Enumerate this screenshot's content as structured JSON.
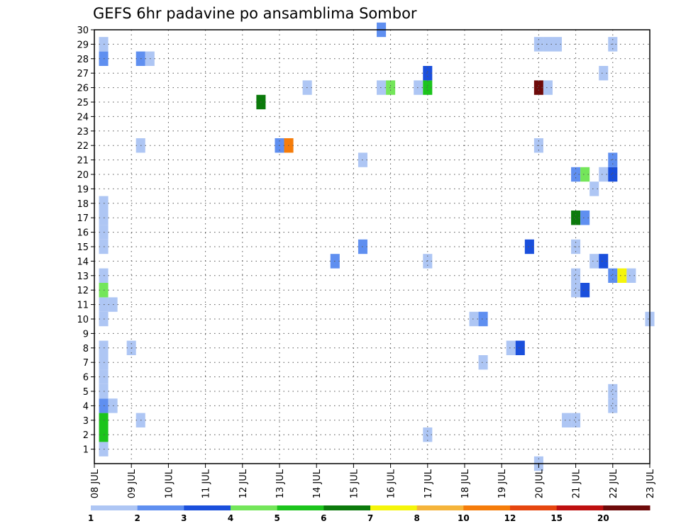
{
  "chart_data": {
    "type": "heatmap",
    "title": "GEFS 6hr padavine po ansamblima Sombor",
    "xlabel": "",
    "ylabel": "",
    "x_tick_labels": [
      "08 JUL",
      "09 JUL",
      "10 JUL",
      "11 JUL",
      "12 JUL",
      "13 JUL",
      "14 JUL",
      "15 JUL",
      "16 JUL",
      "17 JUL",
      "18 JUL",
      "19 JUL",
      "20 JUL",
      "21 JUL",
      "22 JUL",
      "23 JUL"
    ],
    "y_tick_labels": [
      "1",
      "2",
      "3",
      "4",
      "5",
      "6",
      "7",
      "8",
      "9",
      "10",
      "11",
      "12",
      "13",
      "14",
      "15",
      "16",
      "17",
      "18",
      "19",
      "20",
      "21",
      "22",
      "23",
      "24",
      "25",
      "26",
      "27",
      "28",
      "29",
      "30"
    ],
    "xlim": [
      0,
      60
    ],
    "ylim": [
      0,
      30
    ],
    "x_units": "6-hour steps from 08 JUL 00z",
    "grid": true,
    "colorbar": {
      "levels": [
        "1",
        "2",
        "3",
        "4",
        "5",
        "6",
        "7",
        "8",
        "10",
        "12",
        "15",
        "20"
      ],
      "colors": [
        "#aec6f4",
        "#5f8ff0",
        "#1a4fdc",
        "#74e65a",
        "#1cc41c",
        "#0b7a0b",
        "#f5f50a",
        "#f5b43a",
        "#f57c0a",
        "#e6460f",
        "#be1010",
        "#6e0a0a"
      ]
    },
    "cells": [
      {
        "t": 0,
        "m": 0,
        "c": 0
      },
      {
        "t": 0,
        "m": 1,
        "c": 4
      },
      {
        "t": 0,
        "m": 2,
        "c": 4
      },
      {
        "t": 0,
        "m": 3,
        "c": 1
      },
      {
        "t": 1,
        "m": 3,
        "c": 0
      },
      {
        "t": 0,
        "m": 4,
        "c": 0
      },
      {
        "t": 0,
        "m": 5,
        "c": 0
      },
      {
        "t": 0,
        "m": 6,
        "c": 0
      },
      {
        "t": 0,
        "m": 7,
        "c": 0
      },
      {
        "t": 0,
        "m": 9,
        "c": 0
      },
      {
        "t": 0,
        "m": 10,
        "c": 0
      },
      {
        "t": 1,
        "m": 10,
        "c": 0
      },
      {
        "t": 0,
        "m": 11,
        "c": 3
      },
      {
        "t": 0,
        "m": 12,
        "c": 0
      },
      {
        "t": 0,
        "m": 14,
        "c": 0
      },
      {
        "t": 0,
        "m": 15,
        "c": 0
      },
      {
        "t": 0,
        "m": 16,
        "c": 0
      },
      {
        "t": 0,
        "m": 17,
        "c": 0
      },
      {
        "t": 0,
        "m": 27,
        "c": 1
      },
      {
        "t": 0,
        "m": 28,
        "c": 0
      },
      {
        "t": 4,
        "m": 2,
        "c": 0
      },
      {
        "t": 3,
        "m": 7,
        "c": 0
      },
      {
        "t": 4,
        "m": 21,
        "c": 0
      },
      {
        "t": 4,
        "m": 27,
        "c": 1
      },
      {
        "t": 5,
        "m": 27,
        "c": 0
      },
      {
        "t": 17,
        "m": 24,
        "c": 5
      },
      {
        "t": 19,
        "m": 21,
        "c": 1
      },
      {
        "t": 20,
        "m": 21,
        "c": 8
      },
      {
        "t": 22,
        "m": 25,
        "c": 0
      },
      {
        "t": 25,
        "m": 13,
        "c": 1
      },
      {
        "t": 28,
        "m": 14,
        "c": 1
      },
      {
        "t": 28,
        "m": 20,
        "c": 0
      },
      {
        "t": 30,
        "m": 25,
        "c": 0
      },
      {
        "t": 31,
        "m": 25,
        "c": 3
      },
      {
        "t": 30,
        "m": 29,
        "c": 1
      },
      {
        "t": 34,
        "m": 25,
        "c": 0
      },
      {
        "t": 35,
        "m": 1,
        "c": 0
      },
      {
        "t": 35,
        "m": 13,
        "c": 0
      },
      {
        "t": 35,
        "m": 25,
        "c": 4
      },
      {
        "t": 35,
        "m": 26,
        "c": 2
      },
      {
        "t": 40,
        "m": 9,
        "c": 0
      },
      {
        "t": 41,
        "m": 9,
        "c": 1
      },
      {
        "t": 41,
        "m": 6,
        "c": 0
      },
      {
        "t": 44,
        "m": 7,
        "c": 0
      },
      {
        "t": 45,
        "m": 7,
        "c": 2
      },
      {
        "t": 46,
        "m": 14,
        "c": 2
      },
      {
        "t": 47,
        "m": 25,
        "c": 11
      },
      {
        "t": 48,
        "m": 25,
        "c": 0
      },
      {
        "t": 47,
        "m": 21,
        "c": 0
      },
      {
        "t": 47,
        "m": 28,
        "c": 0
      },
      {
        "t": 48,
        "m": 28,
        "c": 0
      },
      {
        "t": 49,
        "m": 28,
        "c": 0
      },
      {
        "t": 47,
        "m": -1,
        "c": 0
      },
      {
        "t": 50,
        "m": 2,
        "c": 0
      },
      {
        "t": 51,
        "m": 2,
        "c": 0
      },
      {
        "t": 51,
        "m": 11,
        "c": 0
      },
      {
        "t": 51,
        "m": 12,
        "c": 0
      },
      {
        "t": 51,
        "m": 14,
        "c": 0
      },
      {
        "t": 51,
        "m": 16,
        "c": 5
      },
      {
        "t": 52,
        "m": 16,
        "c": 1
      },
      {
        "t": 52,
        "m": 11,
        "c": 2
      },
      {
        "t": 51,
        "m": 19,
        "c": 1
      },
      {
        "t": 52,
        "m": 19,
        "c": 3
      },
      {
        "t": 53,
        "m": 18,
        "c": 0
      },
      {
        "t": 53,
        "m": 13,
        "c": 0
      },
      {
        "t": 54,
        "m": 13,
        "c": 2
      },
      {
        "t": 54,
        "m": 26,
        "c": 0
      },
      {
        "t": 54,
        "m": 19,
        "c": 0
      },
      {
        "t": 55,
        "m": 19,
        "c": 2
      },
      {
        "t": 55,
        "m": 20,
        "c": 1
      },
      {
        "t": 55,
        "m": 12,
        "c": 1
      },
      {
        "t": 56,
        "m": 12,
        "c": 6
      },
      {
        "t": 57,
        "m": 12,
        "c": 0
      },
      {
        "t": 55,
        "m": 3,
        "c": 0
      },
      {
        "t": 55,
        "m": 4,
        "c": 0
      },
      {
        "t": 55,
        "m": 28,
        "c": 0
      },
      {
        "t": 59,
        "m": 9,
        "c": 0
      }
    ]
  }
}
